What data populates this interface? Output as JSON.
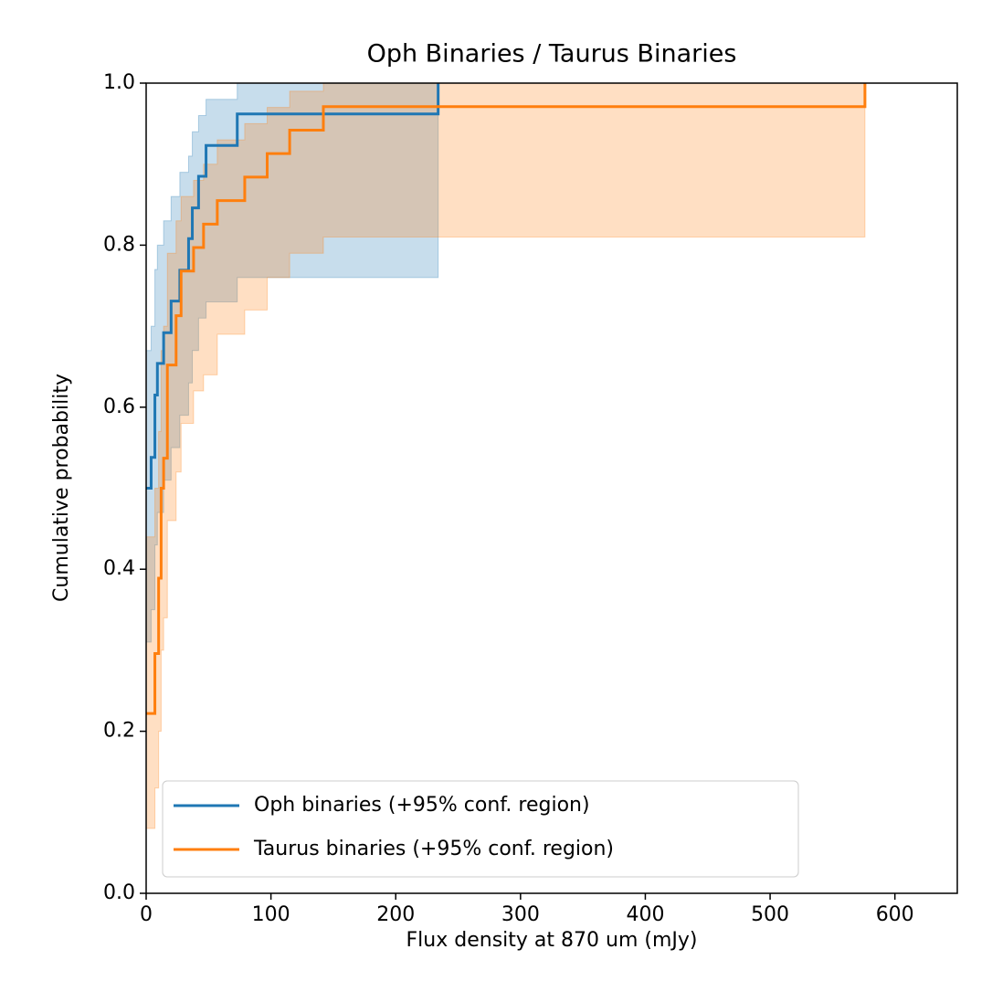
{
  "chart_data": {
    "type": "step",
    "title": "Oph Binaries / Taurus Binaries",
    "xlabel": "Flux density at 870 um (mJy)",
    "ylabel": "Cumulative probability",
    "xlim": [
      0,
      650
    ],
    "xticks": [
      0,
      100,
      200,
      300,
      400,
      500,
      600
    ],
    "ylim": [
      0,
      1
    ],
    "yticks": [
      {
        "value": 0,
        "label": "0.0"
      },
      0.2,
      0.4,
      0.6,
      0.8,
      {
        "value": 1,
        "label": "1.0"
      }
    ],
    "legend": "lower left",
    "series": [
      {
        "name": "Oph binaries (+95% conf. region)",
        "color": "#1f77b4",
        "x": [
          0,
          4,
          7,
          9,
          14,
          20,
          27,
          34,
          37,
          42,
          48,
          73,
          234
        ],
        "values": [
          0.5,
          0.538,
          0.615,
          0.654,
          0.692,
          0.731,
          0.769,
          0.808,
          0.846,
          0.885,
          0.923,
          0.962,
          1.0
        ],
        "upper": [
          0.67,
          0.7,
          0.77,
          0.8,
          0.83,
          0.86,
          0.89,
          0.91,
          0.94,
          0.96,
          0.98,
          1.0,
          1.0
        ],
        "lower": [
          0.31,
          0.35,
          0.43,
          0.47,
          0.51,
          0.55,
          0.59,
          0.63,
          0.67,
          0.71,
          0.73,
          0.76,
          0.76
        ]
      },
      {
        "name": "Taurus binaries (+95% conf. region)",
        "color": "#ff7f0e",
        "x": [
          0,
          7,
          10,
          12,
          14,
          17,
          24,
          28,
          38,
          46,
          57,
          79,
          97,
          115,
          142,
          576
        ],
        "values": [
          0.222,
          0.296,
          0.389,
          0.5,
          0.537,
          0.652,
          0.713,
          0.768,
          0.797,
          0.826,
          0.855,
          0.884,
          0.913,
          0.942,
          0.971,
          1.0
        ],
        "upper": [
          0.44,
          0.5,
          0.57,
          0.67,
          0.7,
          0.79,
          0.83,
          0.86,
          0.88,
          0.9,
          0.93,
          0.95,
          0.97,
          0.99,
          1.0,
          1.0
        ],
        "lower": [
          0.08,
          0.13,
          0.2,
          0.3,
          0.34,
          0.46,
          0.52,
          0.58,
          0.62,
          0.64,
          0.69,
          0.72,
          0.76,
          0.79,
          0.81,
          0.81
        ]
      }
    ]
  }
}
